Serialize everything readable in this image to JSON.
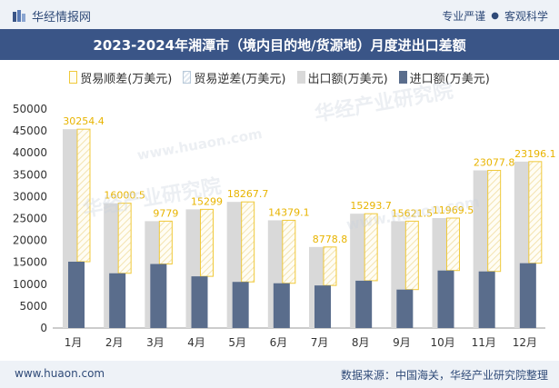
{
  "header": {
    "brand": "华经情报网",
    "tagline_left": "专业严谨",
    "tagline_sep": "●",
    "tagline_right": "客观科学"
  },
  "title": "2023-2024年湘潭市（境内目的地/货源地）月度进出口差额",
  "legend": {
    "shun": "贸易顺差(万美元)",
    "ni": "贸易逆差(万美元)",
    "export": "出口额(万美元)",
    "import": "进口额(万美元)"
  },
  "watermark": {
    "line1": "华经产业研究院",
    "line2": "www.huaon.com"
  },
  "footer": {
    "url": "www.huaon.com",
    "source": "数据来源：中国海关，华经产业研究院整理"
  },
  "colors": {
    "export": "#d9d9d9",
    "import": "#5a6d8c",
    "surplus_border": "#f0c93a",
    "title_bg": "#3a5587"
  },
  "chart_data": {
    "type": "bar",
    "categories": [
      "1月",
      "2月",
      "3月",
      "4月",
      "5月",
      "6月",
      "7月",
      "8月",
      "9月",
      "10月",
      "11月",
      "12月"
    ],
    "ylim": [
      0,
      50000
    ],
    "yticks": [
      0,
      5000,
      10000,
      15000,
      20000,
      25000,
      30000,
      35000,
      40000,
      45000,
      50000
    ],
    "series": [
      {
        "name": "出口额(万美元)",
        "values": [
          45400,
          28500,
          24400,
          27100,
          28800,
          24600,
          18500,
          26100,
          24400,
          25100,
          36000,
          38000
        ]
      },
      {
        "name": "进口额(万美元)",
        "values": [
          15146,
          12500,
          14621,
          11801,
          10532,
          10221,
          9721,
          10806,
          8778,
          13130,
          12922,
          14804
        ]
      },
      {
        "name": "贸易顺差(万美元)",
        "values": [
          30254.4,
          16000.5,
          9779,
          15299,
          18267.7,
          14379.1,
          8778.8,
          15293.7,
          15621.5,
          11969.5,
          23077.8,
          23196.1
        ]
      }
    ],
    "labels": [
      "30254.4",
      "16000.5",
      "9779",
      "15299",
      "18267.7",
      "14379.1",
      "8778.8",
      "15293.7",
      "15621.5",
      "11969.5",
      "23077.8",
      "23196.1"
    ]
  }
}
